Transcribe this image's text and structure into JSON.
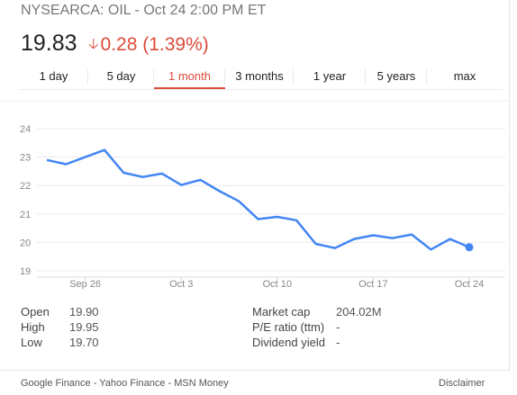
{
  "header": {
    "title": "NYSEARCA: OIL - Oct 24 2:00 PM ET",
    "price": "19.83",
    "change": "0.28 (1.39%)",
    "change_direction_icon": "down-arrow-icon",
    "change_color": "#dd4b39"
  },
  "tabs": [
    {
      "label": "1 day"
    },
    {
      "label": "5 day"
    },
    {
      "label": "1 month",
      "active": true
    },
    {
      "label": "3 months"
    },
    {
      "label": "1 year"
    },
    {
      "label": "5 years"
    },
    {
      "label": "max"
    }
  ],
  "chart_data": {
    "type": "line",
    "x_tick_labels": [
      "Sep 26",
      "Oct 3",
      "Oct 10",
      "Oct 17",
      "Oct 24"
    ],
    "y_tick_labels": [
      "24",
      "23",
      "22",
      "21",
      "20",
      "19"
    ],
    "ylim": [
      18.8,
      24.4
    ],
    "grid": true,
    "line_color": "#4285f4",
    "series": [
      {
        "values": [
          22.9,
          22.75,
          23.0,
          23.25,
          22.45,
          22.3,
          22.42,
          22.02,
          22.2,
          21.8,
          21.45,
          20.82,
          20.9,
          20.78,
          19.95,
          19.8,
          20.12,
          20.25,
          20.15,
          20.28,
          19.75,
          20.12,
          19.83
        ]
      }
    ],
    "x_tick_indices": [
      2,
      7,
      12,
      17,
      22
    ],
    "last_point_marker": true
  },
  "stats": {
    "left": [
      {
        "label": "Open",
        "value": "19.90"
      },
      {
        "label": "High",
        "value": "19.95"
      },
      {
        "label": "Low",
        "value": "19.70"
      }
    ],
    "right": [
      {
        "label": "Market cap",
        "value": "204.02M"
      },
      {
        "label": "P/E ratio (ttm)",
        "value": "-"
      },
      {
        "label": "Dividend yield",
        "value": "-"
      }
    ]
  },
  "footer": {
    "links": [
      "Google Finance",
      "Yahoo Finance",
      "MSN Money"
    ],
    "separator": " - ",
    "disclaimer": "Disclaimer"
  }
}
